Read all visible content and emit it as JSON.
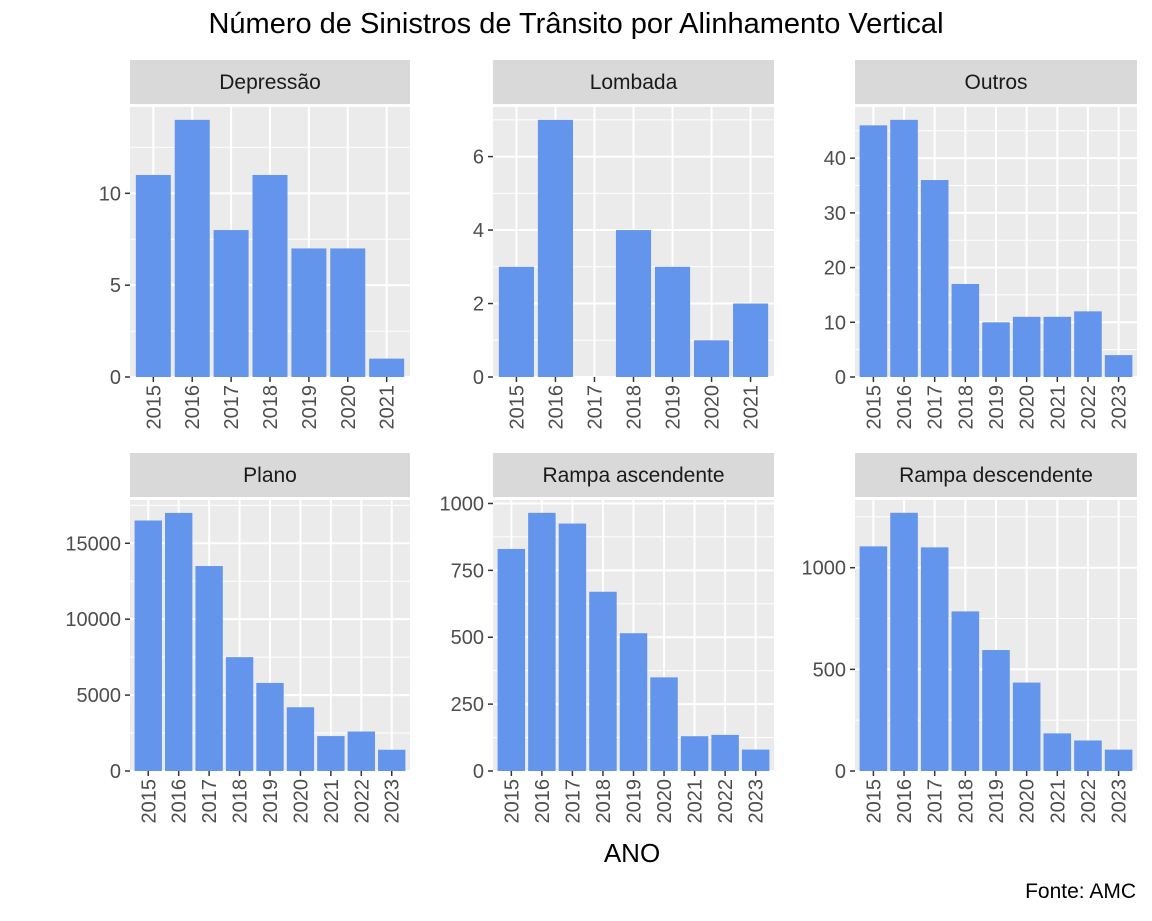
{
  "page": {
    "title": "Número de Sinistros de Trânsito por Alinhamento Vertical",
    "xlabel": "ANO",
    "caption": "Fonte: AMC"
  },
  "colors": {
    "bar": "#6495ED",
    "panel_bg": "#EBEBEB",
    "strip_bg": "#D9D9D9",
    "grid": "#FFFFFF",
    "tick_text": "#4D4D4D",
    "strip_text": "#1A1A1A"
  },
  "chart_data": [
    {
      "type": "bar",
      "facet": "Depressão",
      "categories": [
        "2015",
        "2016",
        "2017",
        "2018",
        "2019",
        "2020",
        "2021"
      ],
      "values": [
        11,
        14,
        8,
        11,
        7,
        7,
        1
      ],
      "yticks": [
        0,
        5,
        10
      ],
      "ylim": [
        0,
        14.7
      ],
      "ylabel": ""
    },
    {
      "type": "bar",
      "facet": "Lombada",
      "categories": [
        "2015",
        "2016",
        "2017",
        "2018",
        "2019",
        "2020",
        "2021"
      ],
      "values": [
        3,
        7,
        0,
        4,
        3,
        1,
        2
      ],
      "yticks": [
        0,
        2,
        4,
        6
      ],
      "ylim": [
        0,
        7.35
      ],
      "ylabel": ""
    },
    {
      "type": "bar",
      "facet": "Outros",
      "categories": [
        "2015",
        "2016",
        "2017",
        "2018",
        "2019",
        "2020",
        "2021",
        "2022",
        "2023"
      ],
      "values": [
        46,
        47,
        36,
        17,
        10,
        11,
        11,
        12,
        4
      ],
      "yticks": [
        0,
        10,
        20,
        30,
        40
      ],
      "ylim": [
        0,
        49.35
      ],
      "ylabel": ""
    },
    {
      "type": "bar",
      "facet": "Plano",
      "categories": [
        "2015",
        "2016",
        "2017",
        "2018",
        "2019",
        "2020",
        "2021",
        "2022",
        "2023"
      ],
      "values": [
        16500,
        17000,
        13500,
        7500,
        5800,
        4200,
        2300,
        2600,
        1400
      ],
      "yticks": [
        0,
        5000,
        10000,
        15000
      ],
      "ylim": [
        0,
        17850
      ],
      "ylabel": ""
    },
    {
      "type": "bar",
      "facet": "Rampa ascendente",
      "categories": [
        "2015",
        "2016",
        "2017",
        "2018",
        "2019",
        "2020",
        "2021",
        "2022",
        "2023"
      ],
      "values": [
        830,
        965,
        925,
        670,
        515,
        350,
        130,
        135,
        80
      ],
      "yticks": [
        0,
        250,
        500,
        750,
        1000
      ],
      "ylim": [
        0,
        1013
      ],
      "ylabel": ""
    },
    {
      "type": "bar",
      "facet": "Rampa descendente",
      "categories": [
        "2015",
        "2016",
        "2017",
        "2018",
        "2019",
        "2020",
        "2021",
        "2022",
        "2023"
      ],
      "values": [
        1105,
        1270,
        1100,
        785,
        595,
        435,
        185,
        150,
        105
      ],
      "yticks": [
        0,
        500,
        1000
      ],
      "ylim": [
        0,
        1333
      ],
      "ylabel": ""
    }
  ]
}
